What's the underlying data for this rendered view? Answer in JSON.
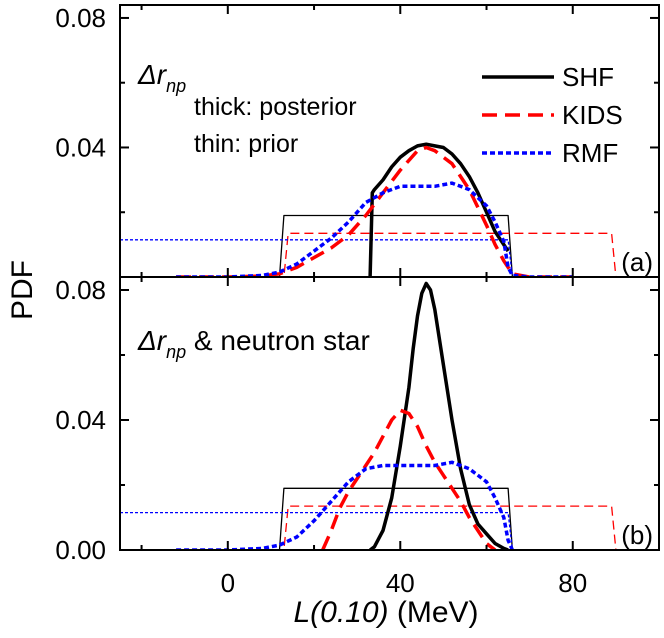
{
  "figure": {
    "ylabel": "PDF",
    "xlabel_italic": "L(0.10)",
    "xlabel_unit": " (MeV)"
  },
  "chart_data": [
    {
      "type": "line",
      "panel_tag": "(a)",
      "annotation": {
        "sym": "Δr",
        "sub": "np",
        "extra": ""
      },
      "note_lines": [
        "thick: posterior",
        "thin: prior"
      ],
      "xlim": [
        -25,
        100
      ],
      "ylim": [
        0,
        0.084
      ],
      "xticks": [
        "0",
        "40",
        "80"
      ],
      "yticks": [
        {
          "v": 0.04,
          "label": "0.04"
        },
        {
          "v": 0.08,
          "label": "0.08"
        }
      ],
      "legend_position": "top-right",
      "grid": false,
      "series": [
        {
          "name": "SHF",
          "role": "posterior",
          "color": "#000000",
          "x": [
            33,
            33.5,
            34,
            36,
            38,
            40,
            42,
            44,
            46,
            48,
            50,
            52,
            54,
            56,
            58,
            60,
            62,
            64,
            65
          ],
          "y": [
            0,
            0.026,
            0.027,
            0.03,
            0.034,
            0.037,
            0.039,
            0.0405,
            0.041,
            0.0405,
            0.04,
            0.038,
            0.035,
            0.031,
            0.026,
            0.02,
            0.014,
            0.01,
            0.008
          ]
        },
        {
          "name": "KIDS",
          "role": "posterior",
          "color": "#ff0000",
          "x": [
            -12,
            0,
            8,
            12,
            16,
            20,
            24,
            28,
            32,
            36,
            40,
            44,
            46,
            48,
            52,
            56,
            60,
            62,
            64,
            66,
            70,
            80
          ],
          "y": [
            0,
            0,
            0.0003,
            0.001,
            0.003,
            0.006,
            0.009,
            0.013,
            0.019,
            0.026,
            0.033,
            0.039,
            0.04,
            0.039,
            0.035,
            0.027,
            0.016,
            0.01,
            0.005,
            0.001,
            0,
            0
          ]
        },
        {
          "name": "RMF",
          "role": "posterior",
          "color": "#0000ff",
          "x": [
            -12,
            0,
            8,
            12,
            16,
            20,
            24,
            28,
            32,
            36,
            40,
            44,
            48,
            52,
            56,
            60,
            62,
            64,
            65,
            66,
            70,
            80
          ],
          "y": [
            0,
            0,
            0.0005,
            0.0015,
            0.004,
            0.008,
            0.012,
            0.017,
            0.023,
            0.026,
            0.028,
            0.028,
            0.028,
            0.029,
            0.027,
            0.022,
            0.017,
            0.011,
            0.003,
            0.0005,
            0,
            0
          ]
        },
        {
          "name": "SHF prior",
          "role": "prior",
          "color": "#000000",
          "x": [
            -25,
            12,
            13,
            65,
            66,
            100
          ],
          "y": [
            0,
            0,
            0.019,
            0.019,
            0,
            0
          ]
        },
        {
          "name": "KIDS prior",
          "role": "prior",
          "color": "#ff0000",
          "x": [
            -25,
            13,
            14,
            89,
            90,
            100
          ],
          "y": [
            0,
            0,
            0.0135,
            0.0135,
            0,
            0
          ]
        },
        {
          "name": "RMF prior",
          "role": "prior",
          "color": "#0000ff",
          "x": [
            -25,
            65,
            66,
            100
          ],
          "y": [
            0.0115,
            0.0115,
            0,
            0
          ]
        }
      ]
    },
    {
      "type": "line",
      "panel_tag": "(b)",
      "annotation": {
        "sym": "Δr",
        "sub": "np",
        "extra": " & neutron star"
      },
      "note_lines": [],
      "xlim": [
        -25,
        100
      ],
      "ylim": [
        0,
        0.084
      ],
      "xticks": [
        "0",
        "40",
        "80"
      ],
      "yticks": [
        {
          "v": 0.0,
          "label": "0.00"
        },
        {
          "v": 0.04,
          "label": "0.04"
        },
        {
          "v": 0.08,
          "label": "0.08"
        }
      ],
      "grid": false,
      "series": [
        {
          "name": "SHF",
          "role": "posterior",
          "color": "#000000",
          "x": [
            33,
            34,
            36,
            38,
            40,
            42,
            43,
            44,
            45,
            46,
            47,
            48,
            50,
            52,
            54,
            56,
            58,
            60,
            62,
            64,
            65
          ],
          "y": [
            0,
            0.001,
            0.006,
            0.016,
            0.032,
            0.05,
            0.062,
            0.072,
            0.079,
            0.082,
            0.08,
            0.074,
            0.057,
            0.04,
            0.025,
            0.014,
            0.008,
            0.005,
            0.002,
            0.0005,
            0
          ]
        },
        {
          "name": "KIDS",
          "role": "posterior",
          "color": "#ff0000",
          "x": [
            22,
            24,
            26,
            28,
            30,
            32,
            34,
            36,
            38,
            40,
            42,
            44,
            46,
            48,
            50,
            52,
            54,
            56,
            58,
            60,
            62
          ],
          "y": [
            0,
            0.006,
            0.013,
            0.018,
            0.022,
            0.026,
            0.03,
            0.035,
            0.04,
            0.043,
            0.042,
            0.038,
            0.032,
            0.027,
            0.023,
            0.019,
            0.015,
            0.01,
            0.006,
            0.002,
            0
          ]
        },
        {
          "name": "RMF",
          "role": "posterior",
          "color": "#0000ff",
          "x": [
            -12,
            0,
            8,
            12,
            16,
            20,
            24,
            28,
            32,
            36,
            40,
            44,
            48,
            52,
            56,
            60,
            62,
            64,
            65,
            66
          ],
          "y": [
            0,
            0,
            0.0005,
            0.0015,
            0.004,
            0.009,
            0.015,
            0.021,
            0.025,
            0.026,
            0.026,
            0.026,
            0.026,
            0.027,
            0.025,
            0.021,
            0.016,
            0.01,
            0.003,
            0
          ]
        },
        {
          "name": "SHF prior",
          "role": "prior",
          "color": "#000000",
          "x": [
            -25,
            12,
            13,
            65,
            66,
            100
          ],
          "y": [
            0,
            0,
            0.019,
            0.019,
            0,
            0
          ]
        },
        {
          "name": "KIDS prior",
          "role": "prior",
          "color": "#ff0000",
          "x": [
            -25,
            13,
            14,
            89,
            90,
            100
          ],
          "y": [
            0,
            0,
            0.0135,
            0.0135,
            0,
            0
          ]
        },
        {
          "name": "RMF prior",
          "role": "prior",
          "color": "#0000ff",
          "x": [
            -25,
            65,
            66,
            100
          ],
          "y": [
            0.0115,
            0.0115,
            0,
            0
          ]
        }
      ]
    }
  ]
}
